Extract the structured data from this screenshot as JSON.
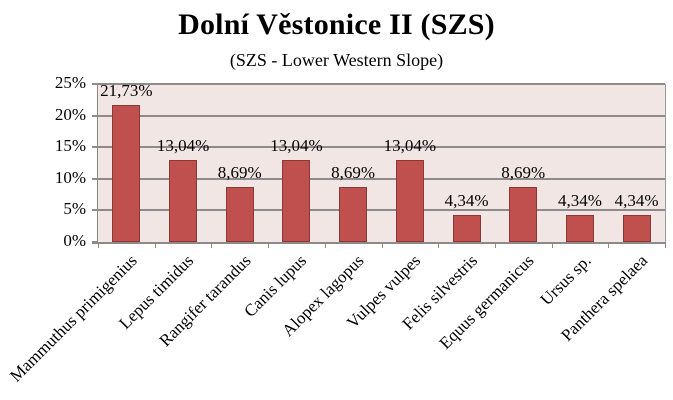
{
  "chart_data": {
    "type": "bar",
    "title": "Dolní Věstonice II (SZS)",
    "subtitle": "(SZS - Lower Western Slope)",
    "xlabel": "",
    "ylabel": "",
    "ylim": [
      0,
      25
    ],
    "yticks": [
      "0%",
      "5%",
      "10%",
      "15%",
      "20%",
      "25%"
    ],
    "grid": true,
    "legend": null,
    "bar_color": "#c0504d",
    "plot_background": "#f2e6e4",
    "categories": [
      "Mammuthus primigenius",
      "Lepus timidus",
      "Rangifer tarandus",
      "Canis lupus",
      "Alopex lagopus",
      "Vulpes vulpes",
      "Felis silvestris",
      "Equus germanicus",
      "Ursus sp.",
      "Panthera spelaea"
    ],
    "values": [
      21.73,
      13.04,
      8.69,
      13.04,
      8.69,
      13.04,
      4.34,
      8.69,
      4.34,
      4.34
    ],
    "data_labels": [
      "21,73%",
      "13,04%",
      "8,69%",
      "13,04%",
      "8,69%",
      "13,04%",
      "4,34%",
      "8,69%",
      "4,34%",
      "4,34%"
    ]
  }
}
